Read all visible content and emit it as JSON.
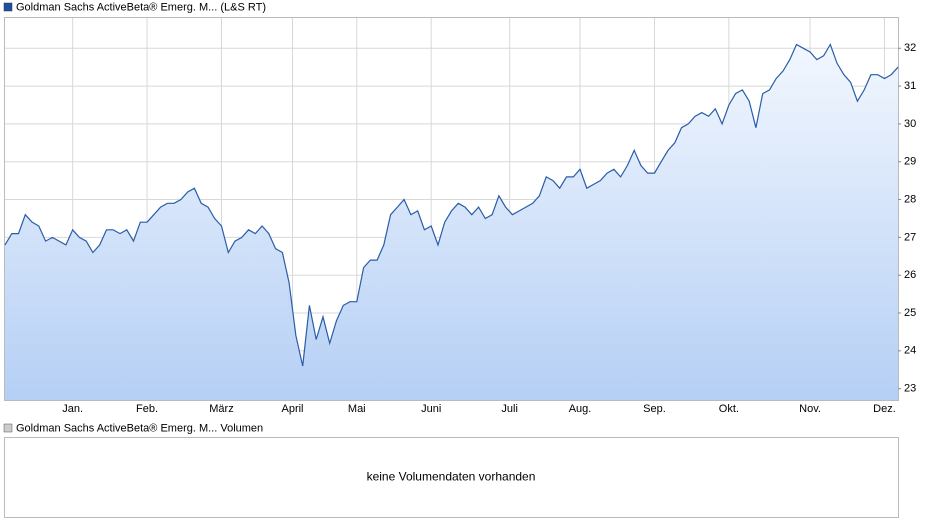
{
  "chart_data": {
    "type": "line",
    "series": [
      {
        "name": "Goldman Sachs ActiveBeta® Emerg. M... (L&S RT)",
        "color": "#2a5ca8",
        "values": [
          26.8,
          27.1,
          27.1,
          27.6,
          27.4,
          27.3,
          26.9,
          27.0,
          26.9,
          26.8,
          27.2,
          27.0,
          26.9,
          26.6,
          26.8,
          27.2,
          27.2,
          27.1,
          27.2,
          26.9,
          27.4,
          27.4,
          27.6,
          27.8,
          27.9,
          27.9,
          28.0,
          28.2,
          28.3,
          27.9,
          27.8,
          27.5,
          27.3,
          26.6,
          26.9,
          27.0,
          27.2,
          27.1,
          27.3,
          27.1,
          26.7,
          26.6,
          25.8,
          24.4,
          23.6,
          25.2,
          24.3,
          24.9,
          24.2,
          24.8,
          25.2,
          25.3,
          25.3,
          26.2,
          26.4,
          26.4,
          26.8,
          27.6,
          27.8,
          28.0,
          27.6,
          27.7,
          27.2,
          27.3,
          26.8,
          27.4,
          27.7,
          27.9,
          27.8,
          27.6,
          27.8,
          27.5,
          27.6,
          28.1,
          27.8,
          27.6,
          27.7,
          27.8,
          27.9,
          28.1,
          28.6,
          28.5,
          28.3,
          28.6,
          28.6,
          28.8,
          28.3,
          28.4,
          28.5,
          28.7,
          28.8,
          28.6,
          28.9,
          29.3,
          28.9,
          28.7,
          28.7,
          29.0,
          29.3,
          29.5,
          29.9,
          30.0,
          30.2,
          30.3,
          30.2,
          30.4,
          30.0,
          30.5,
          30.8,
          30.9,
          30.6,
          29.9,
          30.8,
          30.9,
          31.2,
          31.4,
          31.7,
          32.1,
          32.0,
          31.9,
          31.7,
          31.8,
          32.1,
          31.6,
          31.3,
          31.1,
          30.6,
          30.9,
          31.3,
          31.3,
          31.2,
          31.3,
          31.5
        ]
      }
    ],
    "xlim": [
      0,
      132
    ],
    "xticks": [
      {
        "value": 10,
        "label": "Jan."
      },
      {
        "value": 21,
        "label": "Feb."
      },
      {
        "value": 32,
        "label": "März"
      },
      {
        "value": 42.5,
        "label": "April"
      },
      {
        "value": 52,
        "label": "Mai"
      },
      {
        "value": 63,
        "label": "Juni"
      },
      {
        "value": 74.6,
        "label": "Juli"
      },
      {
        "value": 85,
        "label": "Aug."
      },
      {
        "value": 96,
        "label": "Sep."
      },
      {
        "value": 107,
        "label": "Okt."
      },
      {
        "value": 119,
        "label": "Nov."
      },
      {
        "value": 130,
        "label": "Dez."
      }
    ],
    "ylim": [
      22.7,
      32.8
    ],
    "yticks": [
      23,
      24,
      25,
      26,
      27,
      28,
      29,
      30,
      31,
      32
    ],
    "grid": true
  },
  "volume_panel": {
    "legend": "Goldman Sachs ActiveBeta® Emerg. M... Volumen",
    "message": "keine Volumendaten vorhanden"
  }
}
